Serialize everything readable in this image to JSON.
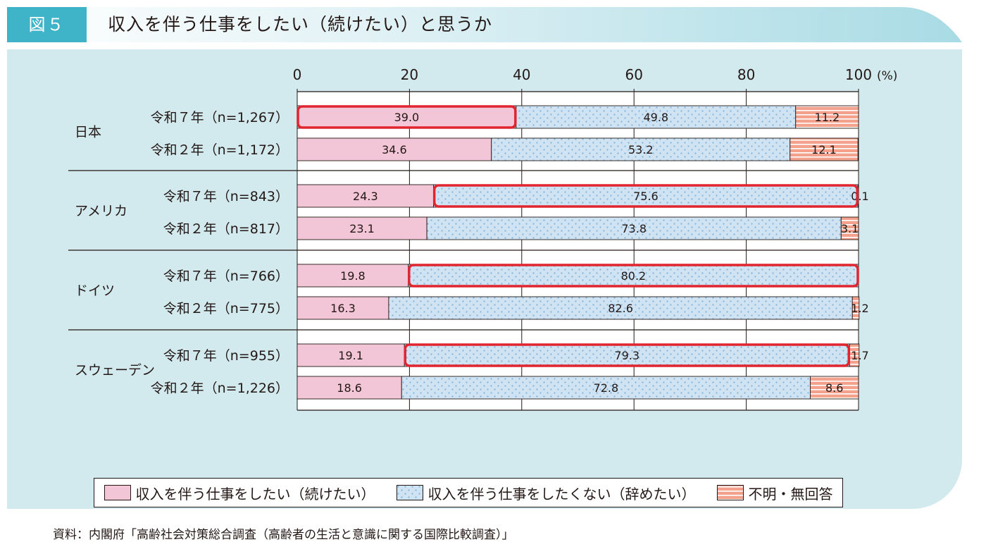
{
  "figure": {
    "label": "図５",
    "title": "収入を伴う仕事をしたい（続けたい）と思うか",
    "source": "資料：内閣府「高齢社会対策総合調査（高齢者の生活と意識に関する国際比較調査）」"
  },
  "colors": {
    "header_band": "#a9dbe5",
    "label_bg": "#3fb3c7",
    "panel_bg": "#d2e9ee",
    "want": "#f2c6d6",
    "not_want": "#cfe3f3",
    "dots": "#7fb3db",
    "unknown": "#f3a08d",
    "stripe": "#ffffff",
    "highlight": "#e0252f"
  },
  "chart_data": {
    "type": "bar",
    "orientation": "horizontal",
    "stacked": true,
    "x_unit": "(%)",
    "xlim": [
      0,
      100
    ],
    "x_ticks": [
      "0",
      "20",
      "40",
      "60",
      "80",
      "100"
    ],
    "grid": true,
    "legend_position": "bottom",
    "series": [
      {
        "name": "収入を伴う仕事をしたい（続けたい）",
        "key": "want"
      },
      {
        "name": "収入を伴う仕事をしたくない（辞めたい）",
        "key": "not_want"
      },
      {
        "name": "不明・無回答",
        "key": "unknown"
      }
    ],
    "groups": [
      {
        "country": "日本",
        "rows": [
          {
            "label": "令和７年（n=1,267）",
            "values": [
              39.0,
              49.8,
              11.2
            ],
            "labels": [
              "39.0",
              "49.8",
              "11.2"
            ],
            "highlight": 0
          },
          {
            "label": "令和２年（n=1,172）",
            "values": [
              34.6,
              53.2,
              12.1
            ],
            "labels": [
              "34.6",
              "53.2",
              "12.1"
            ],
            "highlight": null
          }
        ]
      },
      {
        "country": "アメリカ",
        "rows": [
          {
            "label": "令和７年（n=843）",
            "values": [
              24.3,
              75.6,
              0.1
            ],
            "labels": [
              "24.3",
              "75.6",
              "0.1"
            ],
            "highlight": 1
          },
          {
            "label": "令和２年（n=817）",
            "values": [
              23.1,
              73.8,
              3.1
            ],
            "labels": [
              "23.1",
              "73.8",
              "3.1"
            ],
            "highlight": null
          }
        ]
      },
      {
        "country": "ドイツ",
        "rows": [
          {
            "label": "令和７年（n=766）",
            "values": [
              19.8,
              80.2,
              0
            ],
            "labels": [
              "19.8",
              "80.2",
              ""
            ],
            "highlight": 1
          },
          {
            "label": "令和２年（n=775）",
            "values": [
              16.3,
              82.6,
              1.2
            ],
            "labels": [
              "16.3",
              "82.6",
              "1.2"
            ],
            "highlight": null
          }
        ]
      },
      {
        "country": "スウェーデン",
        "rows": [
          {
            "label": "令和７年（n=955）",
            "values": [
              19.1,
              79.3,
              1.7
            ],
            "labels": [
              "19.1",
              "79.3",
              "1.7"
            ],
            "highlight": 1
          },
          {
            "label": "令和２年（n=1,226）",
            "values": [
              18.6,
              72.8,
              8.6
            ],
            "labels": [
              "18.6",
              "72.8",
              "8.6"
            ],
            "highlight": null
          }
        ]
      }
    ]
  }
}
